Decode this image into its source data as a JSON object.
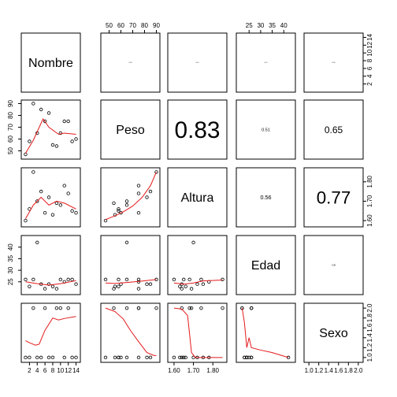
{
  "chart_data": {
    "type": "scatter",
    "title": "",
    "variables": [
      "Nombre",
      "Peso",
      "Altura",
      "Edad",
      "Sexo"
    ],
    "ranges": {
      "Nombre": [
        0.5,
        14.5
      ],
      "Peso": [
        45,
        91
      ],
      "Altura": [
        1.58,
        1.86
      ],
      "Edad": [
        20.5,
        44
      ],
      "Sexo": [
        0.95,
        2.05
      ]
    },
    "ticks": {
      "Nombre": [
        2,
        4,
        6,
        8,
        10,
        12,
        14
      ],
      "Peso": [
        50,
        60,
        70,
        80,
        90
      ],
      "Altura": [
        1.6,
        1.7,
        1.8
      ],
      "Edad": [
        25,
        30,
        35,
        40
      ],
      "Sexo": [
        1.0,
        1.2,
        1.4,
        1.6,
        1.8,
        2.0
      ]
    },
    "tick_labels": {
      "Nombre": [
        "2",
        "4",
        "6",
        "8",
        "10",
        "12",
        "14"
      ],
      "Peso": [
        "50",
        "60",
        "70",
        "80",
        "90"
      ],
      "Altura": [
        "1.60",
        "1.70",
        "1.80"
      ],
      "Edad": [
        "25",
        "30",
        "35",
        "40"
      ],
      "Sexo": [
        "1.0",
        "1.2",
        "1.4",
        "1.6",
        "1.8",
        "2.0"
      ]
    },
    "observations": {
      "Nombre": [
        1,
        2,
        3,
        4,
        5,
        6,
        7,
        8,
        9,
        10,
        11,
        12,
        13,
        14
      ],
      "Peso": [
        47,
        58,
        90,
        65,
        85,
        75,
        82,
        55,
        54,
        65,
        75,
        75,
        58,
        60
      ],
      "Altura": [
        1.6,
        1.66,
        1.85,
        1.7,
        1.75,
        1.64,
        1.72,
        1.63,
        1.69,
        1.68,
        1.78,
        1.74,
        1.65,
        1.64
      ],
      "Edad": [
        26,
        23,
        26,
        42,
        24,
        22,
        24,
        23,
        22,
        26,
        25,
        26,
        26,
        24
      ],
      "Sexo": [
        1,
        1,
        2,
        1,
        1,
        2,
        1,
        1,
        2,
        2,
        1,
        2,
        1,
        1
      ]
    },
    "smooth_lines": {
      "Peso|Nombre": [
        [
          1,
          48
        ],
        [
          3,
          59
        ],
        [
          5.5,
          77
        ],
        [
          7,
          70
        ],
        [
          9.5,
          64
        ],
        [
          11,
          65
        ],
        [
          14,
          64
        ]
      ],
      "Altura|Nombre": [
        [
          1,
          1.61
        ],
        [
          3,
          1.68
        ],
        [
          5,
          1.72
        ],
        [
          7,
          1.68
        ],
        [
          9,
          1.7
        ],
        [
          11,
          1.69
        ],
        [
          14,
          1.66
        ]
      ],
      "Altura|Peso": [
        [
          47,
          1.605
        ],
        [
          55,
          1.625
        ],
        [
          62,
          1.645
        ],
        [
          70,
          1.675
        ],
        [
          78,
          1.72
        ],
        [
          85,
          1.78
        ],
        [
          90,
          1.85
        ]
      ],
      "Edad|Nombre": [
        [
          1,
          25
        ],
        [
          4,
          24.2
        ],
        [
          7,
          23.6
        ],
        [
          10,
          24.2
        ],
        [
          14,
          25.5
        ]
      ],
      "Edad|Peso": [
        [
          47,
          24.5
        ],
        [
          55,
          24.3
        ],
        [
          65,
          24.7
        ],
        [
          75,
          25.2
        ],
        [
          90,
          26
        ]
      ],
      "Edad|Altura": [
        [
          1.6,
          24.5
        ],
        [
          1.65,
          24
        ],
        [
          1.7,
          24.5
        ],
        [
          1.75,
          25.4
        ],
        [
          1.85,
          25.8
        ]
      ],
      "Sexo|Nombre": [
        [
          1,
          1.34
        ],
        [
          2,
          1.3
        ],
        [
          3.5,
          1.25
        ],
        [
          4.5,
          1.27
        ],
        [
          6,
          1.55
        ],
        [
          8,
          1.8
        ],
        [
          9.5,
          1.76
        ],
        [
          11,
          1.79
        ],
        [
          14,
          1.83
        ]
      ],
      "Sexo|Peso": [
        [
          47,
          2.0
        ],
        [
          55,
          1.93
        ],
        [
          62,
          1.78
        ],
        [
          68,
          1.55
        ],
        [
          75,
          1.32
        ],
        [
          82,
          1.1
        ],
        [
          88,
          1.04
        ],
        [
          90,
          1.04
        ]
      ],
      "Sexo|Altura": [
        [
          1.6,
          2.0
        ],
        [
          1.64,
          1.98
        ],
        [
          1.67,
          1.85
        ],
        [
          1.69,
          1.1
        ],
        [
          1.71,
          1.0
        ],
        [
          1.78,
          1.0
        ],
        [
          1.85,
          1.0
        ]
      ],
      "Sexo|Edad": [
        [
          22,
          2.0
        ],
        [
          23,
          1.7
        ],
        [
          24,
          1.2
        ],
        [
          25,
          1.4
        ],
        [
          26,
          1.2
        ],
        [
          30,
          1.15
        ],
        [
          35,
          1.1
        ],
        [
          42,
          1.0
        ]
      ]
    },
    "correlations": {
      "Nombre|Peso": "0.18",
      "Nombre|Altura": "0.10",
      "Nombre|Edad": "0.15",
      "Nombre|Sexo": "0.30",
      "Peso|Altura": "0.83",
      "Peso|Edad": "0.51",
      "Peso|Sexo": "0.65",
      "Altura|Edad": "0.56",
      "Altura|Sexo": "0.77",
      "Edad|Sexo": "0.38"
    },
    "colors": {
      "smooth": "#e41a1c",
      "points": "#000000",
      "frame": "#000000"
    },
    "grid": false
  }
}
